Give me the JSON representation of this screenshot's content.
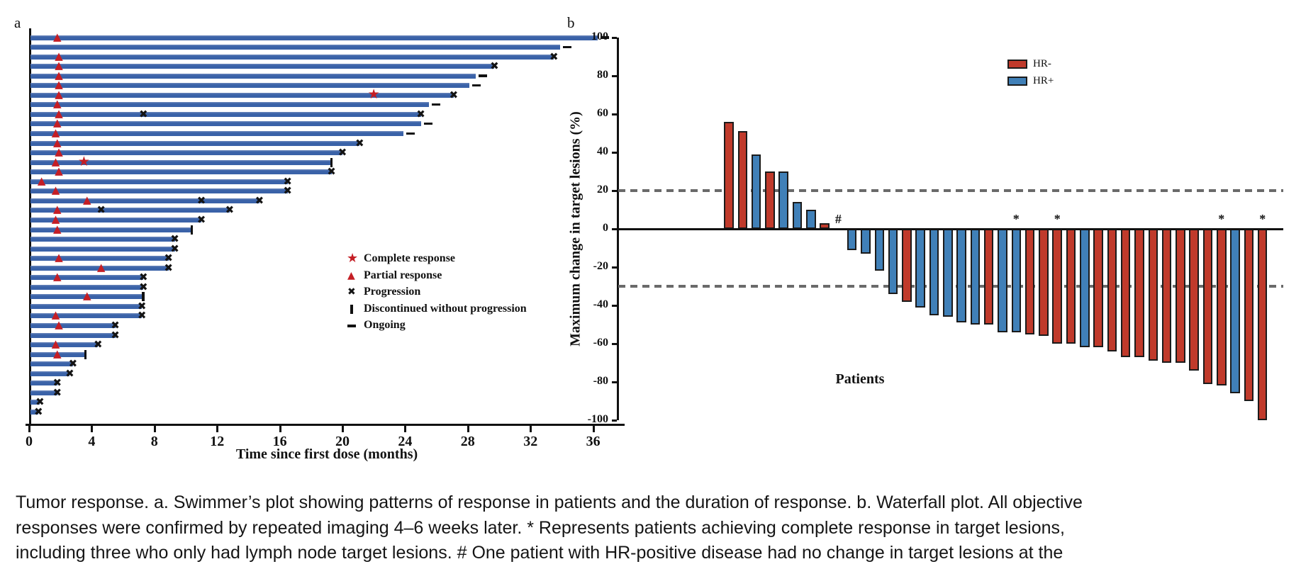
{
  "figure": {
    "panel_a_label": "a",
    "panel_b_label": "b",
    "caption": "Tumor response. a. Swimmer’s plot showing patterns of response in patients and the duration of response. b. Waterfall plot. All objective responses were confirmed by repeated imaging 4–6 weeks later. * Represents patients achieving complete response in target lesions, including three who only had lymph node target lesions. # One patient with HR-positive disease had no change in target lesions at the end of the treatment from baseline."
  },
  "colors": {
    "swimmer_bar": "#3a62a8",
    "response_marker_red": "#c41e25",
    "black_marker": "#141414",
    "hr_negative": "#c03a2b",
    "hr_positive": "#4080b8",
    "ref_line_gray": "#6a6a6a"
  },
  "chart_data": [
    {
      "type": "swimmer",
      "xlabel": "Time since first dose (months)",
      "xlim": [
        0,
        38
      ],
      "xticks": [
        0,
        4,
        8,
        12,
        16,
        20,
        24,
        28,
        32,
        36
      ],
      "grid": false,
      "legend_position": "center-right",
      "legend": [
        {
          "marker": "star",
          "label": "Complete response"
        },
        {
          "marker": "triangle",
          "label": "Partial response"
        },
        {
          "marker": "x",
          "label": "Progression"
        },
        {
          "marker": "bar",
          "label": "Discontinued without progression"
        },
        {
          "marker": "dash",
          "label": "Ongoing"
        }
      ],
      "patients": [
        {
          "duration": 36.3,
          "pr": 1.8,
          "end": "ongoing"
        },
        {
          "duration": 33.9,
          "end": "ongoing"
        },
        {
          "duration": 33.5,
          "pr": 1.9,
          "end": "progression"
        },
        {
          "duration": 29.7,
          "pr": 1.9,
          "end": "progression"
        },
        {
          "duration": 28.5,
          "pr": 1.9,
          "end": "ongoing"
        },
        {
          "duration": 28.1,
          "pr": 1.9,
          "end": "ongoing"
        },
        {
          "duration": 27.1,
          "pr": 1.9,
          "cr": 22.0,
          "end": "progression"
        },
        {
          "duration": 25.5,
          "pr": 1.8,
          "end": "ongoing"
        },
        {
          "duration": 25.0,
          "pr": 1.9,
          "x": [
            7.3
          ],
          "end": "progression"
        },
        {
          "duration": 25.0,
          "pr": 1.8,
          "end": "ongoing"
        },
        {
          "duration": 23.9,
          "pr": 1.7,
          "end": "ongoing"
        },
        {
          "duration": 21.1,
          "pr": 1.8,
          "end": "progression"
        },
        {
          "duration": 20.0,
          "pr": 1.9,
          "end": "progression"
        },
        {
          "duration": 19.3,
          "pr": 1.7,
          "cr": 3.5,
          "end": "discontinued"
        },
        {
          "duration": 19.3,
          "pr": 1.9,
          "end": "progression"
        },
        {
          "duration": 16.5,
          "pr": 0.8,
          "end": "progression"
        },
        {
          "duration": 16.5,
          "pr": 1.7,
          "end": "progression"
        },
        {
          "duration": 14.7,
          "pr": 3.7,
          "x": [
            11.0
          ],
          "end": "progression"
        },
        {
          "duration": 12.8,
          "pr": 1.8,
          "x": [
            4.6
          ],
          "end": "progression"
        },
        {
          "duration": 11.0,
          "pr": 1.7,
          "end": "progression"
        },
        {
          "duration": 10.4,
          "pr": 1.8,
          "end": "discontinued"
        },
        {
          "duration": 9.3,
          "end": "progression"
        },
        {
          "duration": 9.3,
          "end": "progression"
        },
        {
          "duration": 8.9,
          "pr": 1.9,
          "end": "progression"
        },
        {
          "duration": 8.9,
          "pr": 4.6,
          "end": "progression"
        },
        {
          "duration": 7.3,
          "pr": 1.8,
          "end": "progression"
        },
        {
          "duration": 7.3,
          "end": "progression"
        },
        {
          "duration": 7.3,
          "pr": 3.7,
          "end": "discontinued"
        },
        {
          "duration": 7.2,
          "end": "progression"
        },
        {
          "duration": 7.2,
          "pr": 1.7,
          "end": "progression"
        },
        {
          "duration": 5.5,
          "pr": 1.9,
          "end": "progression"
        },
        {
          "duration": 5.5,
          "end": "progression"
        },
        {
          "duration": 4.4,
          "pr": 1.7,
          "end": "progression"
        },
        {
          "duration": 3.6,
          "pr": 1.8,
          "end": "discontinued"
        },
        {
          "duration": 2.8,
          "end": "progression"
        },
        {
          "duration": 2.6,
          "end": "progression"
        },
        {
          "duration": 1.8,
          "end": "progression"
        },
        {
          "duration": 1.8,
          "end": "progression"
        },
        {
          "duration": 0.7,
          "end": "progression"
        },
        {
          "duration": 0.6,
          "end": "progression"
        }
      ]
    },
    {
      "type": "bar",
      "subtype": "waterfall",
      "ylabel": "Maximum change in target lesions (%)",
      "xlabel": "Patients",
      "ylim": [
        -100,
        100
      ],
      "yticks": [
        100,
        80,
        60,
        40,
        20,
        0,
        -20,
        -40,
        -60,
        -80,
        -100
      ],
      "reference_lines": [
        20,
        -30
      ],
      "grid": false,
      "legend_position": "top-right",
      "legend": [
        {
          "label": "HR-",
          "group": "HR-"
        },
        {
          "label": "HR+",
          "group": "HR+"
        }
      ],
      "bars": [
        {
          "value": 56,
          "group": "HR-"
        },
        {
          "value": 51,
          "group": "HR-"
        },
        {
          "value": 39,
          "group": "HR+"
        },
        {
          "value": 30,
          "group": "HR-"
        },
        {
          "value": 30,
          "group": "HR+"
        },
        {
          "value": 14,
          "group": "HR+"
        },
        {
          "value": 10,
          "group": "HR+"
        },
        {
          "value": 3,
          "group": "HR-"
        },
        {
          "value": 0,
          "group": "HR+",
          "annotation": "#"
        },
        {
          "value": -11,
          "group": "HR+"
        },
        {
          "value": -13,
          "group": "HR+"
        },
        {
          "value": -22,
          "group": "HR+"
        },
        {
          "value": -34,
          "group": "HR+"
        },
        {
          "value": -38,
          "group": "HR-"
        },
        {
          "value": -41,
          "group": "HR+"
        },
        {
          "value": -45,
          "group": "HR+"
        },
        {
          "value": -46,
          "group": "HR+"
        },
        {
          "value": -49,
          "group": "HR+"
        },
        {
          "value": -50,
          "group": "HR+"
        },
        {
          "value": -50,
          "group": "HR-"
        },
        {
          "value": -54,
          "group": "HR+"
        },
        {
          "value": -54,
          "group": "HR+",
          "annotation": "*"
        },
        {
          "value": -55,
          "group": "HR-"
        },
        {
          "value": -56,
          "group": "HR-"
        },
        {
          "value": -60,
          "group": "HR-",
          "annotation": "*"
        },
        {
          "value": -60,
          "group": "HR-"
        },
        {
          "value": -62,
          "group": "HR+"
        },
        {
          "value": -62,
          "group": "HR-"
        },
        {
          "value": -64,
          "group": "HR-"
        },
        {
          "value": -67,
          "group": "HR-"
        },
        {
          "value": -67,
          "group": "HR-"
        },
        {
          "value": -69,
          "group": "HR-"
        },
        {
          "value": -70,
          "group": "HR-"
        },
        {
          "value": -70,
          "group": "HR-"
        },
        {
          "value": -74,
          "group": "HR-"
        },
        {
          "value": -81,
          "group": "HR-"
        },
        {
          "value": -82,
          "group": "HR-",
          "annotation": "*"
        },
        {
          "value": -86,
          "group": "HR+"
        },
        {
          "value": -90,
          "group": "HR-"
        },
        {
          "value": -100,
          "group": "HR-",
          "annotation": "*"
        }
      ]
    }
  ]
}
